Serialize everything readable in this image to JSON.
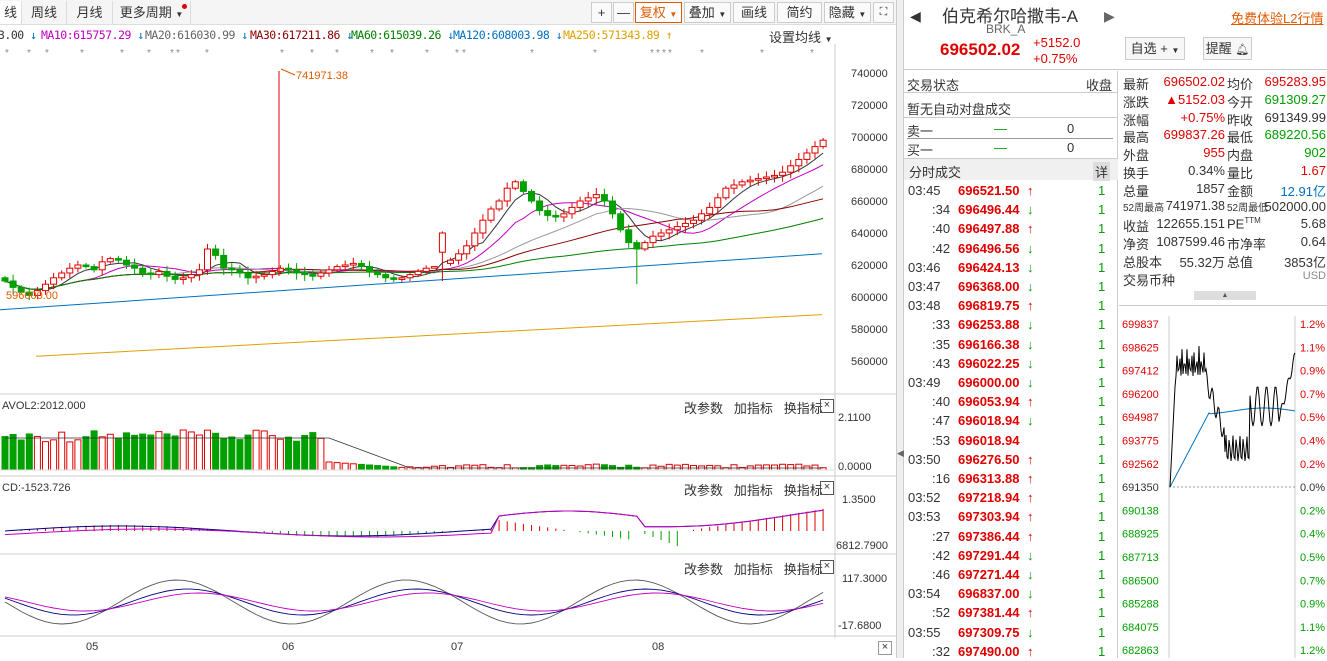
{
  "toolbar": {
    "tabs": [
      "线",
      "周线",
      "月线",
      "更多周期"
    ],
    "right_buttons": {
      "plus": "+",
      "minus": "—",
      "fuquan": "复权",
      "overlay": "叠加",
      "draw": "画线",
      "simple": "简约",
      "hide": "隐藏"
    }
  },
  "ma_row": {
    "items": [
      {
        "label": "3.00",
        "arrow": "↓",
        "color": "#333333"
      },
      {
        "label": "MA10:615757.29",
        "arrow": "↓",
        "color": "#c000c0"
      },
      {
        "label": "MA20:616030.99",
        "arrow": "↓",
        "color": "#666666"
      },
      {
        "label": "MA30:617211.86",
        "arrow": "↓",
        "color": "#8b0000"
      },
      {
        "label": "MA60:615039.26",
        "arrow": "↓",
        "color": "#008000"
      },
      {
        "label": "MA120:608003.98",
        "arrow": "↓",
        "color": "#0070c0"
      },
      {
        "label": "MA250:571343.89",
        "arrow": "↑",
        "color": "#e0a000"
      }
    ],
    "settings": "设置均线"
  },
  "chart": {
    "price_ticks": [
      "740000",
      "720000",
      "700000",
      "680000",
      "660000",
      "640000",
      "620000",
      "600000",
      "580000",
      "560000"
    ],
    "annotations": {
      "high": "741971.38",
      "low": "596000.00"
    },
    "month_labels": [
      "05",
      "06",
      "07",
      "08"
    ],
    "vol_label": "AVOL2:2012.000",
    "vol_ticks": [
      "2.1100",
      "0.0000"
    ],
    "macd_label": "CD:-1523.726",
    "macd_ticks": [
      "1.3500",
      "6812.7900"
    ],
    "kdj_ticks": [
      "117.3000",
      "-17.6800"
    ],
    "panel_buttons": {
      "params": "改参数",
      "add": "加指标",
      "switch": "换指标",
      "close": "×"
    }
  },
  "header": {
    "name": "伯克希尔哈撒韦-A",
    "code": "BRK_A",
    "price": "696502.02",
    "change": "+5152.0",
    "change_pct": "+0.75%",
    "watch_btn": "自选",
    "alert_btn": "提醒",
    "l2_link": "免费体验L2行情"
  },
  "trade_status": {
    "title": "交易状态",
    "close_label": "收盘",
    "no_auction": "暂无自动对盘成交",
    "sell1": "卖一",
    "buy1": "买一",
    "dash": "—",
    "zero": "0",
    "ticks_title": "分时成交",
    "detail": "详"
  },
  "ticks": [
    {
      "t": "03:45",
      "p": "696521.50",
      "d": "up",
      "v": "1"
    },
    {
      "t": ":34",
      "p": "696496.44",
      "d": "down",
      "v": "1"
    },
    {
      "t": ":40",
      "p": "696497.88",
      "d": "up",
      "v": "1"
    },
    {
      "t": ":42",
      "p": "696496.56",
      "d": "down",
      "v": "1"
    },
    {
      "t": "03:46",
      "p": "696424.13",
      "d": "down",
      "v": "1"
    },
    {
      "t": "03:47",
      "p": "696368.00",
      "d": "down",
      "v": "1"
    },
    {
      "t": "03:48",
      "p": "696819.75",
      "d": "up",
      "v": "1"
    },
    {
      "t": ":33",
      "p": "696253.88",
      "d": "down",
      "v": "1"
    },
    {
      "t": ":35",
      "p": "696166.38",
      "d": "down",
      "v": "1"
    },
    {
      "t": ":43",
      "p": "696022.25",
      "d": "down",
      "v": "1"
    },
    {
      "t": "03:49",
      "p": "696000.00",
      "d": "down",
      "v": "1"
    },
    {
      "t": ":40",
      "p": "696053.94",
      "d": "up",
      "v": "1"
    },
    {
      "t": ":47",
      "p": "696018.94",
      "d": "down",
      "v": "1"
    },
    {
      "t": ":53",
      "p": "696018.94",
      "d": "none",
      "v": "1"
    },
    {
      "t": "03:50",
      "p": "696276.50",
      "d": "up",
      "v": "1"
    },
    {
      "t": ":16",
      "p": "696313.88",
      "d": "up",
      "v": "1"
    },
    {
      "t": "03:52",
      "p": "697218.94",
      "d": "up",
      "v": "1"
    },
    {
      "t": "03:53",
      "p": "697303.94",
      "d": "up",
      "v": "1"
    },
    {
      "t": ":27",
      "p": "697386.44",
      "d": "up",
      "v": "1"
    },
    {
      "t": ":42",
      "p": "697291.44",
      "d": "down",
      "v": "1"
    },
    {
      "t": ":46",
      "p": "697271.44",
      "d": "down",
      "v": "1"
    },
    {
      "t": "03:54",
      "p": "696837.00",
      "d": "down",
      "v": "1"
    },
    {
      "t": ":52",
      "p": "697381.44",
      "d": "up",
      "v": "1"
    },
    {
      "t": "03:55",
      "p": "697309.75",
      "d": "down",
      "v": "1"
    },
    {
      "t": ":32",
      "p": "697490.00",
      "d": "up",
      "v": "1"
    }
  ],
  "quote": {
    "l1": "最新",
    "v1": "696502.02",
    "r1": "均价",
    "rv1": "695283.95",
    "l2": "涨跌",
    "v2": "▲5152.03",
    "r2": "今开",
    "rv2": "691309.27",
    "l3": "涨幅",
    "v3": "+0.75%",
    "r3": "昨收",
    "rv3": "691349.99",
    "l4": "最高",
    "v4": "699837.26",
    "r4": "最低",
    "rv4": "689220.56",
    "l5": "外盘",
    "v5": "955",
    "r5": "内盘",
    "rv5": "902",
    "l6": "换手",
    "v6": "0.34%",
    "r6": "量比",
    "rv6": "1.67",
    "l7": "总量",
    "v7": "1857",
    "r7": "金额",
    "rv7": "12.91亿",
    "l8": "52周最高",
    "v8": "741971.38",
    "r8": "52周最低",
    "rv8": "502000.00",
    "l9": "收益",
    "v9": "122655.151",
    "r9": "PE",
    "r9sup": "TTM",
    "rv9": "5.68",
    "l10": "净资",
    "v10": "1087599.46",
    "r10": "市净率",
    "rv10": "0.64",
    "l11": "总股本",
    "v11": "55.32万",
    "r11": "总值",
    "rv11": "3853亿",
    "l12": "交易币种",
    "rv12": "USD",
    "collapse": "▲"
  },
  "intraday": {
    "prices": [
      "699837",
      "698625",
      "697412",
      "696200",
      "694987",
      "693775",
      "692562",
      "691350",
      "690138",
      "688925",
      "687713",
      "686500",
      "685288",
      "684075",
      "682863"
    ],
    "pcts": [
      "1.2%",
      "1.1%",
      "0.9%",
      "0.7%",
      "0.5%",
      "0.4%",
      "0.2%",
      "0.0%",
      "0.2%",
      "0.4%",
      "0.5%",
      "0.7%",
      "0.9%",
      "1.1%",
      "1.2%"
    ]
  },
  "colors": {
    "up": "#e00000",
    "down": "#00a000",
    "accent": "#e05a00"
  }
}
